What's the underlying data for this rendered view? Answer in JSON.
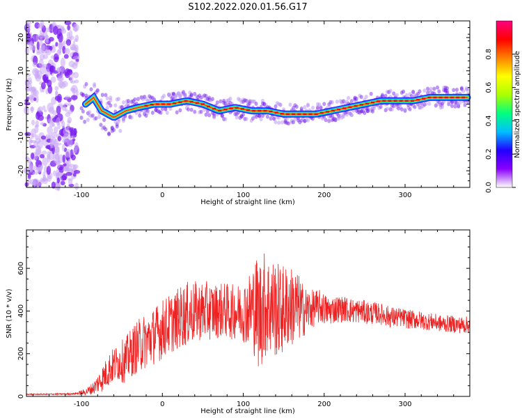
{
  "title": "S102.2022.020.01.56.G17",
  "chart_data": [
    {
      "type": "heatmap",
      "xlabel": "Height of straight line (km)",
      "ylabel": "Frequency (Hz)",
      "xlim": [
        -168,
        380
      ],
      "ylim": [
        -25,
        25
      ],
      "x_ticks": [
        -100,
        0,
        100,
        200,
        300
      ],
      "y_ticks": [
        -20,
        -10,
        0,
        10,
        20
      ],
      "colorbar": {
        "label": "Normalized spectral amplitude",
        "range": [
          0,
          1
        ],
        "ticks": [
          "0.0",
          "0.2",
          "0.4",
          "0.6",
          "0.8"
        ],
        "colors": [
          "#ffffff",
          "#8a00ff",
          "#2200ff",
          "#00bfff",
          "#00ff7f",
          "#aaff00",
          "#ffff00",
          "#ff8000",
          "#ff0000",
          "#ff0080"
        ]
      },
      "ridge": {
        "x": [
          -95,
          -85,
          -75,
          -60,
          -45,
          -30,
          -10,
          10,
          30,
          50,
          70,
          90,
          110,
          130,
          150,
          170,
          190,
          210,
          230,
          250,
          270,
          290,
          310,
          330,
          350,
          378
        ],
        "y": [
          0,
          2,
          -2,
          -4,
          -2,
          -1,
          0,
          0,
          1,
          0,
          -2,
          -1,
          -2,
          -2,
          -3,
          -3,
          -3,
          -2,
          -1,
          0,
          1,
          1,
          1,
          2,
          2,
          2
        ]
      }
    },
    {
      "type": "line",
      "xlabel": "Height of straight line (km)",
      "ylabel": "SNR (10 * v/v)",
      "xlim": [
        -168,
        380
      ],
      "ylim": [
        0,
        780
      ],
      "x_ticks": [
        -100,
        0,
        100,
        200,
        300
      ],
      "y_ticks": [
        0,
        200,
        400,
        600
      ],
      "series": [
        {
          "color": "#ee2222",
          "x": [
            -168,
            -140,
            -110,
            -95,
            -85,
            -75,
            -65,
            -55,
            -45,
            -35,
            -25,
            -15,
            -5,
            5,
            15,
            25,
            35,
            45,
            55,
            65,
            75,
            85,
            95,
            105,
            115,
            120,
            125,
            135,
            145,
            155,
            165,
            175,
            185,
            195,
            205,
            215,
            225,
            235,
            245,
            255,
            265,
            275,
            285,
            295,
            305,
            315,
            325,
            335,
            345,
            355,
            365,
            378
          ],
          "values": [
            10,
            10,
            12,
            20,
            40,
            80,
            130,
            160,
            170,
            220,
            250,
            270,
            300,
            330,
            350,
            380,
            390,
            400,
            400,
            400,
            405,
            395,
            400,
            400,
            420,
            380,
            430,
            420,
            400,
            420,
            420,
            400,
            410,
            420,
            400,
            410,
            410,
            400,
            400,
            390,
            390,
            380,
            370,
            370,
            360,
            360,
            350,
            350,
            340,
            340,
            335,
            335
          ],
          "spread": [
            3,
            3,
            4,
            15,
            30,
            60,
            80,
            90,
            110,
            120,
            130,
            130,
            140,
            140,
            140,
            150,
            150,
            140,
            140,
            130,
            130,
            130,
            130,
            160,
            240,
            280,
            260,
            240,
            220,
            200,
            180,
            120,
            90,
            80,
            70,
            65,
            60,
            60,
            55,
            55,
            50,
            50,
            50,
            45,
            45,
            45,
            40,
            40,
            40,
            40,
            40,
            40
          ]
        }
      ]
    }
  ]
}
